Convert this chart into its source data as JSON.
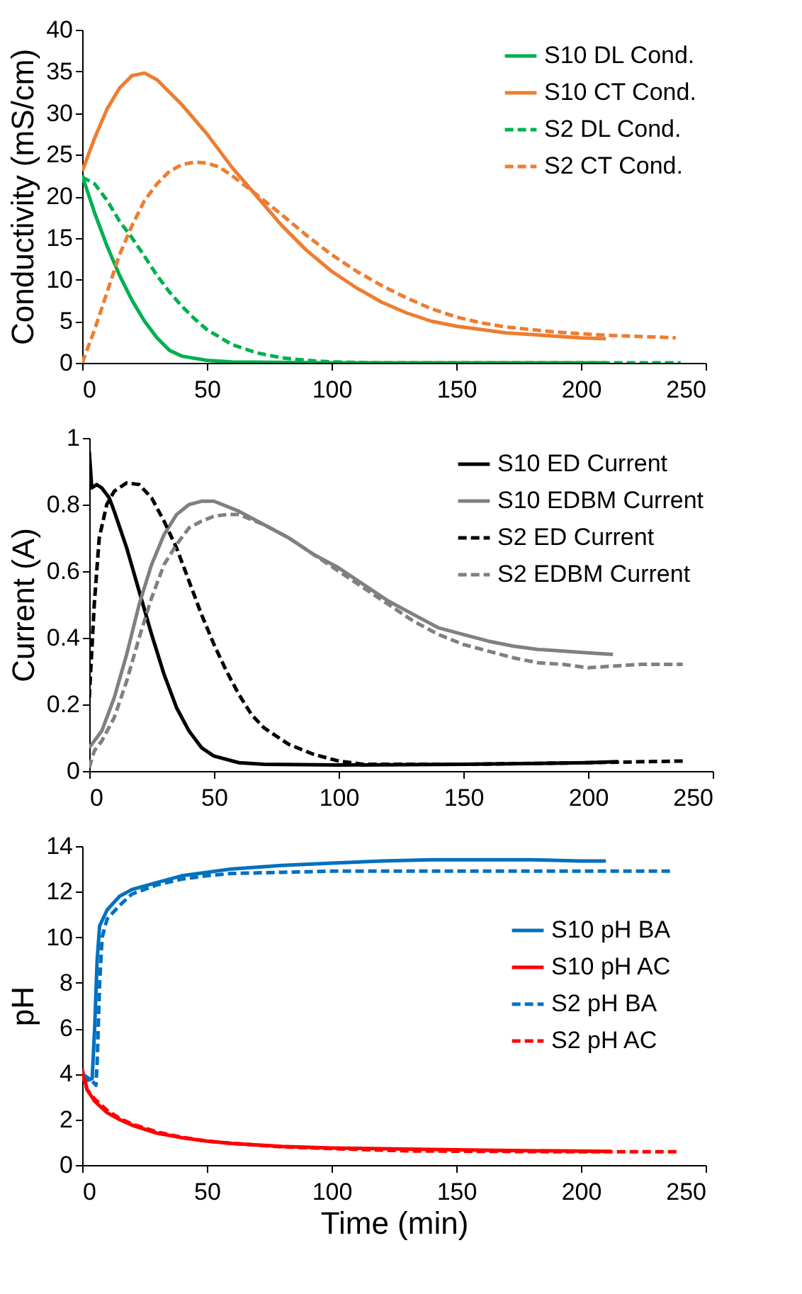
{
  "chart_data": [
    {
      "type": "line",
      "ylabel": "Conductivity (mS/cm)",
      "xlim": [
        0,
        250
      ],
      "xticks": [
        0,
        50,
        100,
        150,
        200,
        250
      ],
      "ylim": [
        0,
        40
      ],
      "yticks": [
        0,
        5,
        10,
        15,
        20,
        25,
        30,
        35,
        40
      ],
      "legend": "top right",
      "series": [
        {
          "name": "S10 DL Cond.",
          "color": "#00b050",
          "line_style": "solid",
          "x": [
            0,
            5,
            10,
            15,
            20,
            25,
            30,
            35,
            40,
            50,
            60,
            100,
            150,
            210
          ],
          "values": [
            22.5,
            18,
            14,
            10.5,
            7.5,
            5,
            3,
            1.5,
            0.8,
            0.3,
            0.1,
            0,
            0,
            0
          ]
        },
        {
          "name": "S10 CT Cond.",
          "color": "#ed7d31",
          "line_style": "solid",
          "x": [
            0,
            5,
            10,
            15,
            20,
            25,
            30,
            40,
            50,
            60,
            70,
            80,
            90,
            100,
            110,
            120,
            130,
            140,
            150,
            160,
            170,
            180,
            190,
            200,
            210
          ],
          "values": [
            23,
            27,
            30.5,
            33,
            34.5,
            34.8,
            34,
            31,
            27.5,
            23.5,
            20,
            16.5,
            13.5,
            11,
            9,
            7.3,
            6,
            5,
            4.4,
            4,
            3.6,
            3.4,
            3.2,
            3,
            2.9
          ]
        },
        {
          "name": "S2 DL Cond.",
          "color": "#00b050",
          "line_style": "dashed",
          "x": [
            0,
            5,
            10,
            15,
            20,
            25,
            30,
            35,
            40,
            45,
            50,
            60,
            70,
            80,
            90,
            100,
            120,
            180,
            240
          ],
          "values": [
            22.3,
            21.5,
            19.5,
            17,
            15,
            12.8,
            10.5,
            8.5,
            6.8,
            5.3,
            4,
            2.2,
            1.2,
            0.6,
            0.3,
            0.1,
            0,
            0,
            0
          ]
        },
        {
          "name": "S2 CT Cond.",
          "color": "#ed7d31",
          "line_style": "dashed",
          "x": [
            0,
            5,
            10,
            15,
            20,
            25,
            30,
            35,
            40,
            45,
            50,
            55,
            60,
            70,
            80,
            90,
            100,
            110,
            120,
            130,
            140,
            150,
            160,
            170,
            180,
            190,
            200,
            210,
            220,
            230,
            238
          ],
          "values": [
            0,
            4,
            8.5,
            13,
            16.5,
            19.5,
            21.5,
            23,
            23.8,
            24.1,
            24,
            23.5,
            22.5,
            20.2,
            17.8,
            15.3,
            13,
            11,
            9.3,
            7.8,
            6.5,
            5.5,
            4.8,
            4.3,
            4,
            3.7,
            3.5,
            3.3,
            3.2,
            3.1,
            3
          ]
        }
      ]
    },
    {
      "type": "line",
      "ylabel": "Current (A)",
      "xlim": [
        0,
        250
      ],
      "xticks": [
        0,
        50,
        100,
        150,
        200,
        250
      ],
      "ylim": [
        0,
        1
      ],
      "yticks": [
        0,
        0.2,
        0.4,
        0.6,
        0.8,
        1
      ],
      "legend": "top right",
      "series": [
        {
          "name": "S10 ED Current",
          "color": "#000000",
          "line_style": "solid",
          "x": [
            0,
            1,
            3,
            5,
            8,
            10,
            15,
            20,
            25,
            30,
            35,
            40,
            45,
            50,
            60,
            70,
            100,
            150,
            200,
            212
          ],
          "values": [
            0.96,
            0.85,
            0.86,
            0.85,
            0.82,
            0.78,
            0.67,
            0.54,
            0.41,
            0.29,
            0.19,
            0.12,
            0.07,
            0.045,
            0.025,
            0.02,
            0.018,
            0.02,
            0.025,
            0.028
          ]
        },
        {
          "name": "S10 EDBM Current",
          "color": "#808080",
          "line_style": "solid",
          "x": [
            0,
            5,
            10,
            15,
            20,
            25,
            30,
            35,
            40,
            45,
            50,
            60,
            70,
            80,
            90,
            100,
            110,
            120,
            130,
            140,
            150,
            160,
            170,
            180,
            190,
            200,
            210
          ],
          "values": [
            0.07,
            0.12,
            0.22,
            0.35,
            0.5,
            0.62,
            0.71,
            0.77,
            0.8,
            0.81,
            0.81,
            0.78,
            0.74,
            0.7,
            0.65,
            0.61,
            0.56,
            0.51,
            0.47,
            0.43,
            0.41,
            0.39,
            0.375,
            0.365,
            0.36,
            0.355,
            0.35
          ]
        },
        {
          "name": "S2 ED Current",
          "color": "#000000",
          "line_style": "dashed",
          "x": [
            0,
            2,
            4,
            7,
            10,
            15,
            20,
            25,
            30,
            35,
            40,
            45,
            50,
            55,
            60,
            65,
            70,
            80,
            90,
            100,
            110,
            120,
            150,
            200,
            238
          ],
          "values": [
            0.22,
            0.5,
            0.7,
            0.8,
            0.84,
            0.865,
            0.86,
            0.82,
            0.75,
            0.67,
            0.57,
            0.47,
            0.38,
            0.3,
            0.23,
            0.17,
            0.13,
            0.08,
            0.05,
            0.03,
            0.02,
            0.02,
            0.02,
            0.025,
            0.03
          ]
        },
        {
          "name": "S2 EDBM Current",
          "color": "#808080",
          "line_style": "dashed",
          "x": [
            0,
            2,
            5,
            10,
            15,
            20,
            25,
            30,
            35,
            40,
            45,
            50,
            55,
            60,
            70,
            80,
            90,
            100,
            110,
            120,
            130,
            140,
            150,
            160,
            170,
            180,
            190,
            200,
            210,
            220,
            230,
            238
          ],
          "values": [
            0.01,
            0.06,
            0.09,
            0.16,
            0.27,
            0.4,
            0.52,
            0.62,
            0.68,
            0.73,
            0.75,
            0.765,
            0.77,
            0.77,
            0.74,
            0.7,
            0.65,
            0.6,
            0.55,
            0.5,
            0.45,
            0.41,
            0.38,
            0.36,
            0.34,
            0.325,
            0.32,
            0.31,
            0.315,
            0.32,
            0.32,
            0.32
          ]
        }
      ]
    },
    {
      "type": "line",
      "xlabel": "Time (min)",
      "ylabel": "pH",
      "xlim": [
        0,
        250
      ],
      "xticks": [
        0,
        50,
        100,
        150,
        200,
        250
      ],
      "ylim": [
        0,
        14
      ],
      "yticks": [
        0,
        2,
        4,
        6,
        8,
        10,
        12,
        14
      ],
      "legend": "right",
      "series": [
        {
          "name": "S10 pH BA",
          "color": "#0070c0",
          "line_style": "solid",
          "x": [
            0,
            2,
            4,
            5,
            6,
            7,
            10,
            15,
            20,
            30,
            40,
            50,
            60,
            80,
            100,
            120,
            140,
            160,
            180,
            200,
            210
          ],
          "values": [
            4,
            3.7,
            3.8,
            6,
            9,
            10.5,
            11.2,
            11.8,
            12.1,
            12.4,
            12.7,
            12.85,
            13,
            13.15,
            13.25,
            13.35,
            13.4,
            13.4,
            13.4,
            13.35,
            13.35
          ]
        },
        {
          "name": "S10 pH AC",
          "color": "#ff0000",
          "line_style": "solid",
          "x": [
            0,
            2,
            5,
            10,
            15,
            20,
            30,
            40,
            50,
            60,
            80,
            100,
            130,
            160,
            190,
            212
          ],
          "values": [
            4.2,
            3.3,
            2.8,
            2.3,
            2,
            1.75,
            1.4,
            1.2,
            1.05,
            0.95,
            0.82,
            0.75,
            0.7,
            0.65,
            0.62,
            0.6
          ]
        },
        {
          "name": "S2 pH BA",
          "color": "#0070c0",
          "line_style": "dashed",
          "x": [
            0,
            4,
            5.5,
            6,
            7,
            8,
            10,
            15,
            20,
            30,
            40,
            50,
            60,
            80,
            100,
            150,
            200,
            237
          ],
          "values": [
            4,
            3.7,
            3.5,
            4.5,
            8,
            10,
            10.8,
            11.4,
            11.9,
            12.3,
            12.55,
            12.7,
            12.8,
            12.85,
            12.9,
            12.9,
            12.9,
            12.9
          ]
        },
        {
          "name": "S2 pH AC",
          "color": "#ff0000",
          "line_style": "dashed",
          "x": [
            0,
            2,
            5,
            10,
            15,
            20,
            30,
            40,
            50,
            60,
            80,
            100,
            130,
            160,
            200,
            240
          ],
          "values": [
            4,
            3.3,
            2.9,
            2.4,
            2.05,
            1.8,
            1.45,
            1.22,
            1.05,
            0.95,
            0.8,
            0.72,
            0.62,
            0.6,
            0.58,
            0.58
          ]
        }
      ]
    }
  ]
}
